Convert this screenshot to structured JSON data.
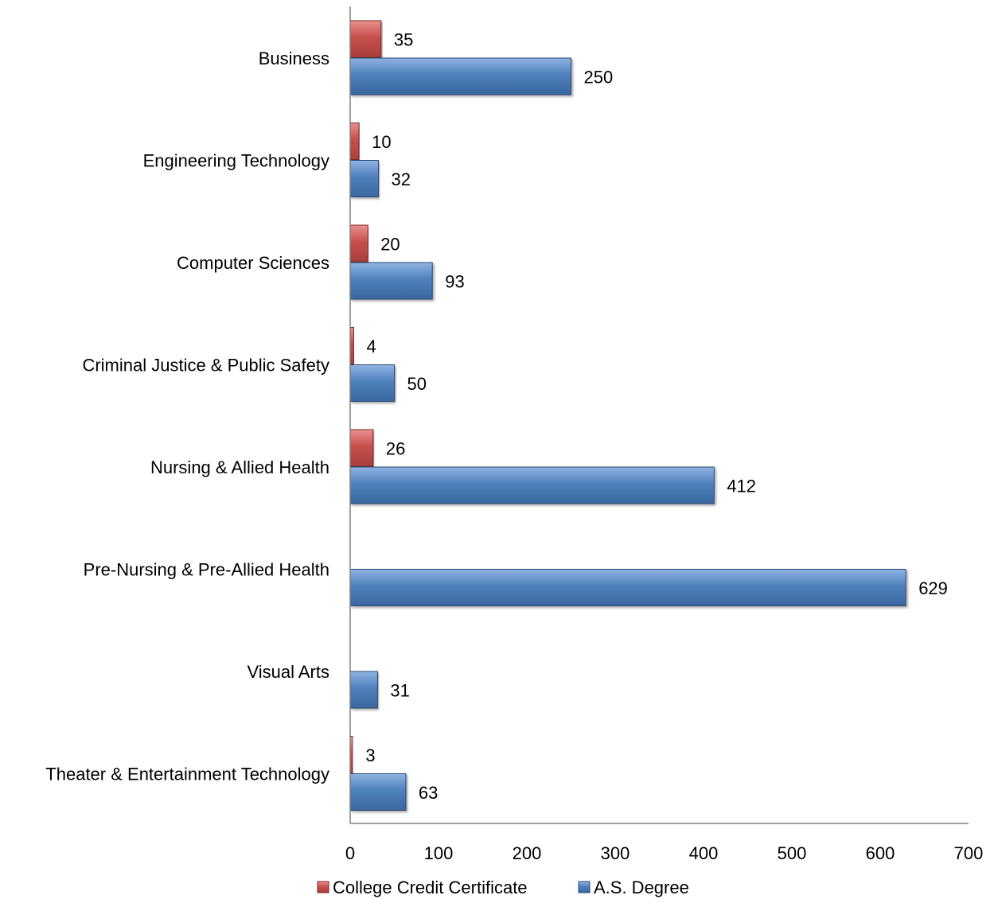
{
  "chart_data": {
    "type": "bar",
    "orientation": "horizontal",
    "categories": [
      "Business",
      "Engineering Technology",
      "Computer Sciences",
      "Criminal Justice & Public Safety",
      "Nursing & Allied Health",
      "Pre-Nursing & Pre-Allied Health",
      "Visual Arts",
      "Theater & Entertainment Technology"
    ],
    "series": [
      {
        "name": "College Credit Certificate",
        "color": "#c0504d",
        "values": [
          35,
          10,
          20,
          4,
          26,
          null,
          null,
          3
        ]
      },
      {
        "name": "A.S. Degree",
        "color": "#4f81bd",
        "values": [
          250,
          32,
          93,
          50,
          412,
          629,
          31,
          63
        ]
      }
    ],
    "xlim": [
      0,
      700
    ],
    "xticks": [
      0,
      100,
      200,
      300,
      400,
      500,
      600,
      700
    ],
    "title": "",
    "xlabel": "",
    "ylabel": "",
    "grid": false,
    "legend_position": "bottom"
  }
}
